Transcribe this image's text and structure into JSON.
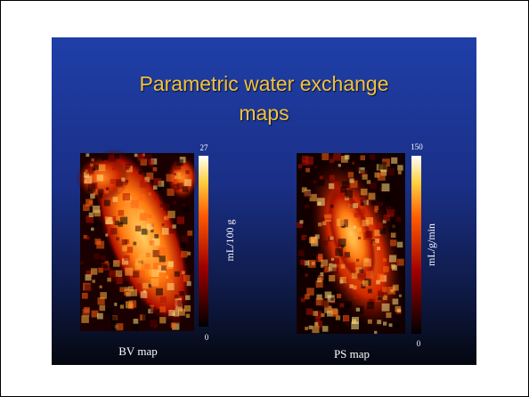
{
  "slide": {
    "title": "Parametric water exchange maps",
    "panels": [
      {
        "caption": "BV map",
        "scale_max": 27,
        "scale_min": 0,
        "unit": "mL/100 g"
      },
      {
        "caption": "PS map",
        "scale_max": 150,
        "scale_min": 0,
        "unit": "mL/g/min"
      }
    ]
  }
}
